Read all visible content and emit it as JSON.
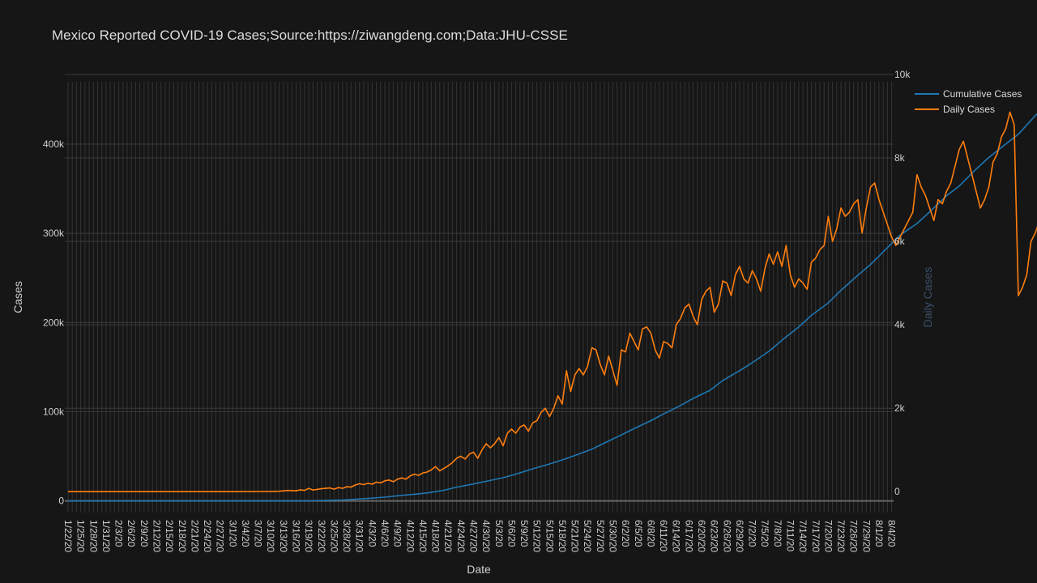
{
  "chart_data": {
    "type": "line",
    "title": "Mexico Reported COVID-19 Cases;Source:https://ziwangdeng.com;Data:JHU-CSSE",
    "xlabel": "Date",
    "ylabel": "Cases",
    "y2label": "Daily Cases",
    "start_date": "2020-01-22",
    "x_tick_labels": [
      "1/22/20",
      "1/25/20",
      "1/28/20",
      "1/31/20",
      "2/3/20",
      "2/6/20",
      "2/9/20",
      "2/12/20",
      "2/15/20",
      "2/18/20",
      "2/21/20",
      "2/24/20",
      "2/27/20",
      "3/1/20",
      "3/4/20",
      "3/7/20",
      "3/10/20",
      "3/13/20",
      "3/16/20",
      "3/19/20",
      "3/22/20",
      "3/25/20",
      "3/28/20",
      "3/31/20",
      "4/3/20",
      "4/6/20",
      "4/9/20",
      "4/12/20",
      "4/15/20",
      "4/18/20",
      "4/21/20",
      "4/24/20",
      "4/27/20",
      "4/30/20",
      "5/3/20",
      "5/6/20",
      "5/9/20",
      "5/12/20",
      "5/15/20",
      "5/18/20",
      "5/21/20",
      "5/24/20",
      "5/27/20",
      "5/30/20",
      "6/2/20",
      "6/5/20",
      "6/8/20",
      "6/11/20",
      "6/14/20",
      "6/17/20",
      "6/20/20",
      "6/23/20",
      "6/26/20",
      "6/29/20",
      "7/2/20",
      "7/5/20",
      "7/8/20",
      "7/11/20",
      "7/14/20",
      "7/17/20",
      "7/20/20",
      "7/23/20",
      "7/26/20",
      "7/29/20",
      "8/1/20",
      "8/4/20"
    ],
    "y_ticks": [
      {
        "value": 0,
        "label": "0"
      },
      {
        "value": 100000,
        "label": "100k"
      },
      {
        "value": 200000,
        "label": "200k"
      },
      {
        "value": 300000,
        "label": "300k"
      },
      {
        "value": 400000,
        "label": "400k"
      }
    ],
    "y2_ticks": [
      {
        "value": 0,
        "label": "0"
      },
      {
        "value": 2000,
        "label": "2k"
      },
      {
        "value": 4000,
        "label": "4k"
      },
      {
        "value": 6000,
        "label": "6k"
      },
      {
        "value": 8000,
        "label": "8k"
      },
      {
        "value": 10000,
        "label": "10k"
      }
    ],
    "ylim": [
      -13000,
      478000
    ],
    "y2lim": [
      -500,
      10000
    ],
    "legend_position": "top-right",
    "grid": true,
    "series": [
      {
        "name": "Cumulative Cases",
        "axis": "y",
        "color": "#1f77b4",
        "points": [
          [
            0,
            0
          ],
          [
            30,
            0
          ],
          [
            40,
            5
          ],
          [
            50,
            10
          ],
          [
            54,
            50
          ],
          [
            57,
            160
          ],
          [
            61,
            500
          ],
          [
            65,
            1100
          ],
          [
            68,
            2000
          ],
          [
            71,
            2800
          ],
          [
            75,
            4200
          ],
          [
            78,
            5800
          ],
          [
            82,
            7500
          ],
          [
            85,
            9000
          ],
          [
            89,
            12000
          ],
          [
            92,
            15500
          ],
          [
            96,
            19000
          ],
          [
            99,
            22000
          ],
          [
            103,
            26000
          ],
          [
            106,
            30000
          ],
          [
            110,
            36000
          ],
          [
            113,
            40000
          ],
          [
            117,
            46000
          ],
          [
            120,
            51000
          ],
          [
            124,
            58000
          ],
          [
            127,
            65000
          ],
          [
            131,
            74000
          ],
          [
            134,
            81000
          ],
          [
            138,
            90000
          ],
          [
            141,
            97500
          ],
          [
            145,
            107000
          ],
          [
            148,
            115000
          ],
          [
            152,
            124000
          ],
          [
            155,
            135000
          ],
          [
            159,
            146000
          ],
          [
            162,
            155000
          ],
          [
            166,
            168000
          ],
          [
            169,
            180000
          ],
          [
            173,
            195000
          ],
          [
            176,
            208000
          ],
          [
            180,
            222000
          ],
          [
            183,
            236000
          ],
          [
            187,
            253000
          ],
          [
            190,
            265000
          ],
          [
            194,
            284000
          ],
          [
            197,
            298000
          ],
          [
            201,
            311000
          ],
          [
            204,
            324000
          ],
          [
            208,
            342000
          ],
          [
            211,
            353000
          ],
          [
            215,
            372000
          ],
          [
            218,
            385000
          ],
          [
            222,
            400000
          ],
          [
            225,
            411000
          ],
          [
            229,
            432000
          ],
          [
            232,
            444000
          ],
          [
            235,
            456000
          ]
        ]
      },
      {
        "name": "Daily Cases",
        "axis": "y2",
        "color": "#ff7f0e",
        "points": [
          [
            0,
            0
          ],
          [
            40,
            0
          ],
          [
            47,
            5
          ],
          [
            50,
            10
          ],
          [
            52,
            30
          ],
          [
            54,
            20
          ],
          [
            55,
            45
          ],
          [
            56,
            30
          ],
          [
            57,
            80
          ],
          [
            58,
            40
          ],
          [
            60,
            70
          ],
          [
            62,
            90
          ],
          [
            63,
            60
          ],
          [
            64,
            100
          ],
          [
            65,
            80
          ],
          [
            66,
            120
          ],
          [
            67,
            110
          ],
          [
            68,
            160
          ],
          [
            69,
            190
          ],
          [
            70,
            170
          ],
          [
            71,
            200
          ],
          [
            72,
            180
          ],
          [
            73,
            230
          ],
          [
            74,
            210
          ],
          [
            75,
            260
          ],
          [
            76,
            280
          ],
          [
            77,
            240
          ],
          [
            78,
            300
          ],
          [
            79,
            330
          ],
          [
            80,
            300
          ],
          [
            81,
            380
          ],
          [
            82,
            420
          ],
          [
            83,
            390
          ],
          [
            84,
            450
          ],
          [
            85,
            470
          ],
          [
            86,
            520
          ],
          [
            87,
            600
          ],
          [
            88,
            500
          ],
          [
            89,
            560
          ],
          [
            90,
            620
          ],
          [
            91,
            700
          ],
          [
            92,
            800
          ],
          [
            93,
            850
          ],
          [
            94,
            780
          ],
          [
            95,
            900
          ],
          [
            96,
            950
          ],
          [
            97,
            800
          ],
          [
            98,
            1000
          ],
          [
            99,
            1150
          ],
          [
            100,
            1050
          ],
          [
            101,
            1150
          ],
          [
            102,
            1300
          ],
          [
            103,
            1100
          ],
          [
            104,
            1400
          ],
          [
            105,
            1500
          ],
          [
            106,
            1400
          ],
          [
            107,
            1550
          ],
          [
            108,
            1600
          ],
          [
            109,
            1450
          ],
          [
            110,
            1650
          ],
          [
            111,
            1700
          ],
          [
            112,
            1900
          ],
          [
            113,
            2000
          ],
          [
            114,
            1800
          ],
          [
            115,
            2000
          ],
          [
            116,
            2300
          ],
          [
            117,
            2100
          ],
          [
            118,
            2900
          ],
          [
            119,
            2400
          ],
          [
            120,
            2800
          ],
          [
            121,
            2950
          ],
          [
            122,
            2800
          ],
          [
            123,
            3000
          ],
          [
            124,
            3450
          ],
          [
            125,
            3400
          ],
          [
            126,
            3050
          ],
          [
            127,
            2800
          ],
          [
            128,
            3250
          ],
          [
            129,
            2900
          ],
          [
            130,
            2550
          ],
          [
            131,
            3400
          ],
          [
            132,
            3350
          ],
          [
            133,
            3800
          ],
          [
            134,
            3600
          ],
          [
            135,
            3400
          ],
          [
            136,
            3900
          ],
          [
            137,
            3950
          ],
          [
            138,
            3800
          ],
          [
            139,
            3400
          ],
          [
            140,
            3200
          ],
          [
            141,
            3600
          ],
          [
            142,
            3550
          ],
          [
            143,
            3450
          ],
          [
            144,
            4000
          ],
          [
            145,
            4150
          ],
          [
            146,
            4400
          ],
          [
            147,
            4500
          ],
          [
            148,
            4200
          ],
          [
            149,
            4000
          ],
          [
            150,
            4600
          ],
          [
            151,
            4800
          ],
          [
            152,
            4900
          ],
          [
            153,
            4300
          ],
          [
            154,
            4500
          ],
          [
            155,
            5050
          ],
          [
            156,
            5000
          ],
          [
            157,
            4700
          ],
          [
            158,
            5200
          ],
          [
            159,
            5400
          ],
          [
            160,
            5100
          ],
          [
            161,
            5000
          ],
          [
            162,
            5300
          ],
          [
            163,
            5100
          ],
          [
            164,
            4800
          ],
          [
            165,
            5350
          ],
          [
            166,
            5700
          ],
          [
            167,
            5450
          ],
          [
            168,
            5750
          ],
          [
            169,
            5400
          ],
          [
            170,
            5900
          ],
          [
            171,
            5200
          ],
          [
            172,
            4900
          ],
          [
            173,
            5100
          ],
          [
            174,
            5000
          ],
          [
            175,
            4850
          ],
          [
            176,
            5500
          ],
          [
            177,
            5600
          ],
          [
            178,
            5800
          ],
          [
            179,
            5900
          ],
          [
            180,
            6600
          ],
          [
            181,
            6000
          ],
          [
            182,
            6300
          ],
          [
            183,
            6800
          ],
          [
            184,
            6600
          ],
          [
            185,
            6700
          ],
          [
            186,
            6900
          ],
          [
            187,
            7000
          ],
          [
            188,
            6200
          ],
          [
            189,
            6800
          ],
          [
            190,
            7300
          ],
          [
            191,
            7400
          ],
          [
            192,
            7000
          ],
          [
            193,
            6700
          ],
          [
            194,
            6400
          ],
          [
            195,
            6100
          ],
          [
            196,
            5900
          ],
          [
            197,
            6100
          ],
          [
            198,
            6300
          ],
          [
            199,
            6500
          ],
          [
            200,
            6700
          ],
          [
            201,
            7600
          ],
          [
            202,
            7300
          ],
          [
            203,
            7100
          ],
          [
            204,
            6800
          ],
          [
            205,
            6500
          ],
          [
            206,
            7000
          ],
          [
            207,
            6900
          ],
          [
            208,
            7200
          ],
          [
            209,
            7400
          ],
          [
            210,
            7800
          ],
          [
            211,
            8200
          ],
          [
            212,
            8400
          ],
          [
            213,
            8000
          ],
          [
            214,
            7600
          ],
          [
            215,
            7200
          ],
          [
            216,
            6800
          ],
          [
            217,
            7000
          ],
          [
            218,
            7300
          ],
          [
            219,
            7900
          ],
          [
            220,
            8100
          ],
          [
            221,
            8500
          ],
          [
            222,
            8700
          ],
          [
            223,
            9100
          ],
          [
            224,
            8800
          ],
          [
            225,
            4700
          ],
          [
            226,
            4900
          ],
          [
            227,
            5200
          ],
          [
            228,
            6000
          ],
          [
            229,
            6200
          ],
          [
            230,
            6500
          ],
          [
            231,
            6850
          ],
          [
            232,
            6900
          ],
          [
            233,
            6900
          ],
          [
            234,
            6850
          ],
          [
            235,
            6850
          ]
        ]
      }
    ]
  }
}
